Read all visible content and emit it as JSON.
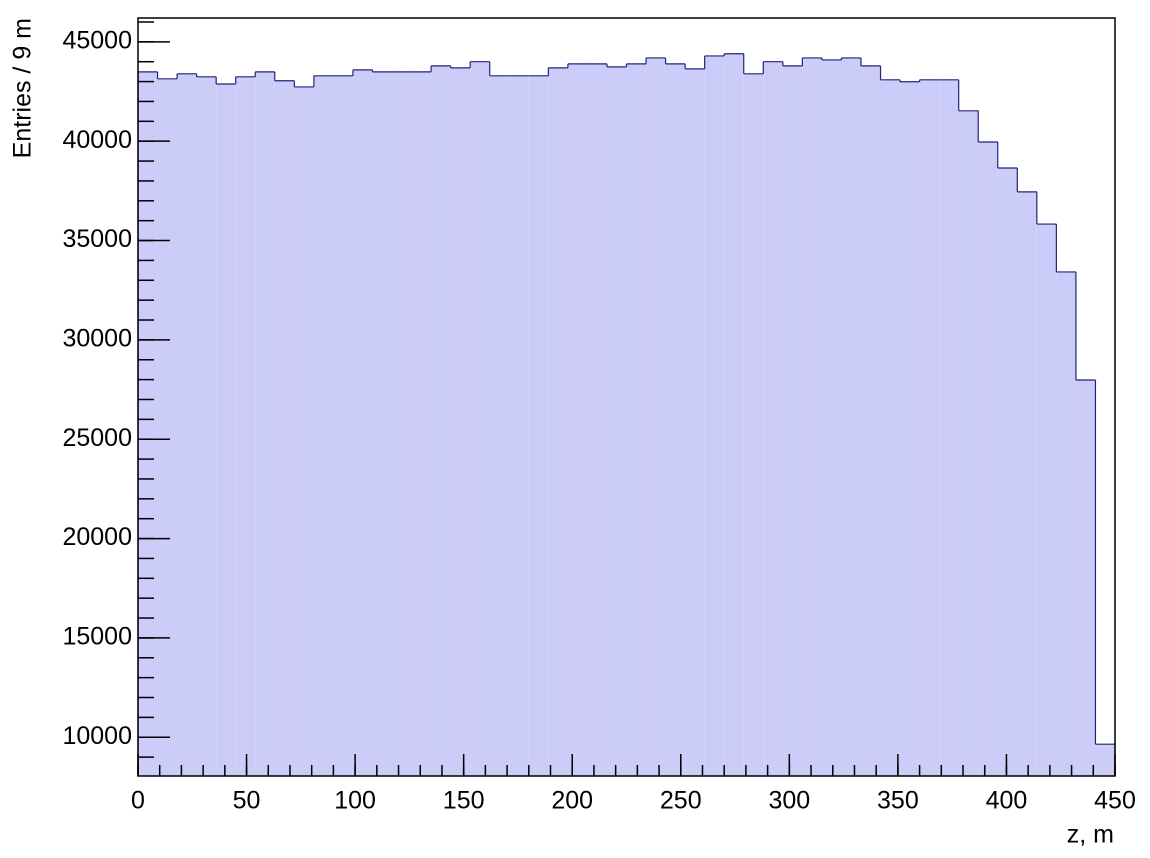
{
  "chart_data": {
    "type": "histogram",
    "x_label": "z, m",
    "y_label": "Entries / 9 m",
    "bins": [
      0,
      9,
      18,
      27,
      36,
      45,
      54,
      63,
      72,
      81,
      90,
      99,
      108,
      117,
      126,
      135,
      144,
      153,
      162,
      171,
      180,
      189,
      198,
      207,
      216,
      225,
      234,
      243,
      252,
      261,
      270,
      279,
      288,
      297,
      306,
      315,
      324,
      333,
      342,
      351,
      360,
      369,
      378,
      387,
      396,
      405,
      414,
      423,
      432,
      441,
      450
    ],
    "values": [
      43490,
      43140,
      43390,
      43240,
      42880,
      43240,
      43490,
      43040,
      42730,
      43290,
      43290,
      43590,
      43490,
      43490,
      43490,
      43790,
      43690,
      44000,
      43290,
      43290,
      43290,
      43690,
      43890,
      43890,
      43740,
      43890,
      44190,
      43890,
      43640,
      44290,
      44400,
      43390,
      44000,
      43790,
      44190,
      44090,
      44190,
      43790,
      43090,
      42990,
      43090,
      43090,
      41530,
      39960,
      38650,
      37450,
      35830,
      33420,
      27980,
      9650
    ],
    "color": "#ccccf8",
    "line_color": "#22227a",
    "xlim": [
      0,
      450
    ],
    "ylim": [
      8050,
      46200
    ],
    "xticks": [
      0,
      50,
      100,
      150,
      200,
      250,
      300,
      350,
      400,
      450
    ],
    "yticks": [
      10000,
      15000,
      20000,
      25000,
      30000,
      35000,
      40000,
      45000
    ]
  }
}
